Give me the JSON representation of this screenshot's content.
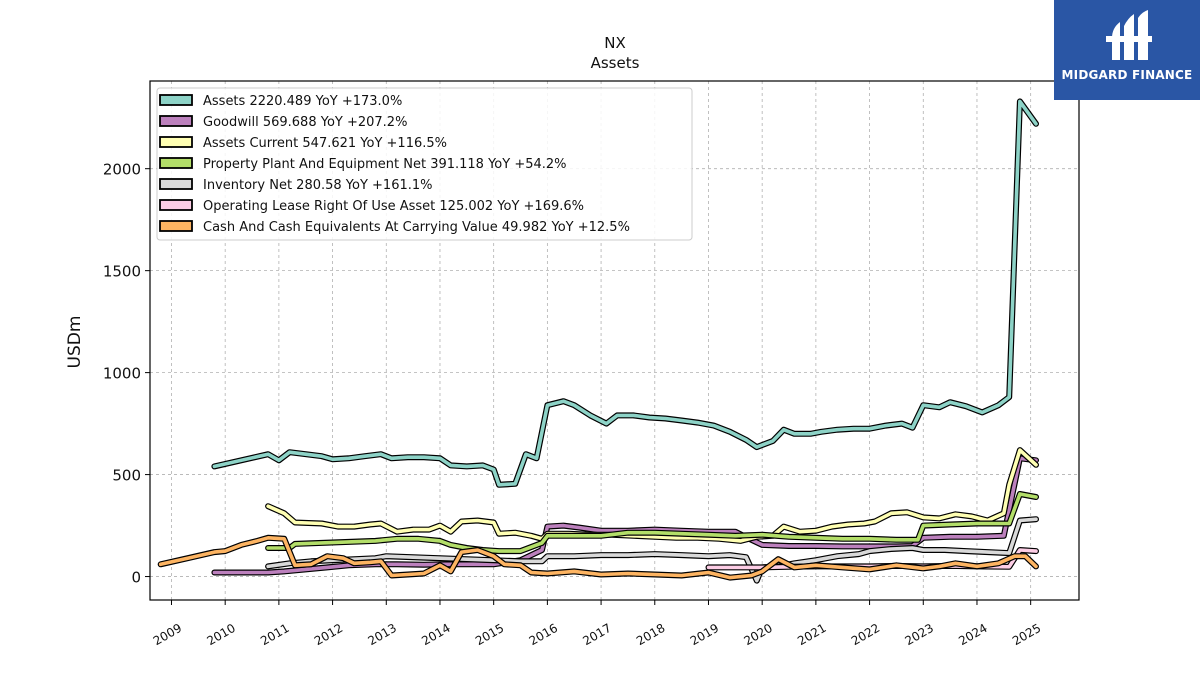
{
  "brand": {
    "name": "MIDGARD FINANCE"
  },
  "chart_data": {
    "type": "line",
    "title": "NX",
    "subtitle": "Assets",
    "ylabel": "USDm",
    "xlabel": "",
    "xlim": [
      2008.6,
      2025.9
    ],
    "ylim": [
      -115,
      2430
    ],
    "yticks": [
      0,
      500,
      1000,
      1500,
      2000
    ],
    "xticks": [
      "2009",
      "2010",
      "2011",
      "2012",
      "2013",
      "2014",
      "2015",
      "2016",
      "2017",
      "2018",
      "2019",
      "2020",
      "2021",
      "2022",
      "2023",
      "2024",
      "2025"
    ],
    "grid": true,
    "legend_position": "top-left",
    "series": [
      {
        "name": "Assets",
        "legend_label": "Assets  2220.489 YoY +173.0%",
        "color": "#8dd3c7",
        "points": [
          [
            2009.8,
            540
          ],
          [
            2010.8,
            600
          ],
          [
            2011.0,
            570
          ],
          [
            2011.2,
            610
          ],
          [
            2011.5,
            600
          ],
          [
            2011.8,
            590
          ],
          [
            2012.0,
            575
          ],
          [
            2012.3,
            580
          ],
          [
            2012.6,
            590
          ],
          [
            2012.9,
            600
          ],
          [
            2013.1,
            580
          ],
          [
            2013.4,
            585
          ],
          [
            2013.7,
            585
          ],
          [
            2014.0,
            580
          ],
          [
            2014.2,
            545
          ],
          [
            2014.5,
            540
          ],
          [
            2014.8,
            545
          ],
          [
            2015.0,
            525
          ],
          [
            2015.1,
            450
          ],
          [
            2015.4,
            455
          ],
          [
            2015.6,
            600
          ],
          [
            2015.8,
            580
          ],
          [
            2016.0,
            840
          ],
          [
            2016.3,
            860
          ],
          [
            2016.5,
            840
          ],
          [
            2016.8,
            790
          ],
          [
            2017.1,
            750
          ],
          [
            2017.3,
            790
          ],
          [
            2017.6,
            790
          ],
          [
            2017.9,
            780
          ],
          [
            2018.2,
            775
          ],
          [
            2018.5,
            765
          ],
          [
            2018.8,
            755
          ],
          [
            2019.1,
            740
          ],
          [
            2019.4,
            710
          ],
          [
            2019.7,
            670
          ],
          [
            2019.9,
            635
          ],
          [
            2020.2,
            665
          ],
          [
            2020.4,
            720
          ],
          [
            2020.6,
            700
          ],
          [
            2020.9,
            700
          ],
          [
            2021.1,
            710
          ],
          [
            2021.4,
            720
          ],
          [
            2021.7,
            725
          ],
          [
            2022.0,
            725
          ],
          [
            2022.3,
            740
          ],
          [
            2022.6,
            750
          ],
          [
            2022.8,
            730
          ],
          [
            2023.0,
            840
          ],
          [
            2023.3,
            830
          ],
          [
            2023.5,
            855
          ],
          [
            2023.8,
            835
          ],
          [
            2024.1,
            805
          ],
          [
            2024.4,
            840
          ],
          [
            2024.6,
            880
          ],
          [
            2024.8,
            2330
          ],
          [
            2025.1,
            2220
          ]
        ]
      },
      {
        "name": "Goodwill",
        "legend_label": "Goodwill  569.688 YoY +207.2%",
        "color": "#bc80bd",
        "points": [
          [
            2009.8,
            20
          ],
          [
            2010.3,
            20
          ],
          [
            2010.8,
            20
          ],
          [
            2011.1,
            25
          ],
          [
            2011.5,
            35
          ],
          [
            2011.9,
            45
          ],
          [
            2012.3,
            55
          ],
          [
            2012.8,
            60
          ],
          [
            2013.2,
            60
          ],
          [
            2013.7,
            58
          ],
          [
            2014.1,
            60
          ],
          [
            2014.6,
            60
          ],
          [
            2015.0,
            60
          ],
          [
            2015.5,
            80
          ],
          [
            2015.9,
            130
          ],
          [
            2016.0,
            245
          ],
          [
            2016.3,
            250
          ],
          [
            2016.6,
            240
          ],
          [
            2017.0,
            225
          ],
          [
            2017.5,
            225
          ],
          [
            2018.0,
            230
          ],
          [
            2018.5,
            225
          ],
          [
            2019.0,
            220
          ],
          [
            2019.5,
            220
          ],
          [
            2019.8,
            180
          ],
          [
            2020.0,
            155
          ],
          [
            2020.5,
            150
          ],
          [
            2021.0,
            150
          ],
          [
            2021.5,
            148
          ],
          [
            2022.0,
            148
          ],
          [
            2022.5,
            148
          ],
          [
            2022.8,
            150
          ],
          [
            2023.0,
            190
          ],
          [
            2023.5,
            195
          ],
          [
            2024.0,
            195
          ],
          [
            2024.5,
            200
          ],
          [
            2024.8,
            580
          ],
          [
            2025.1,
            570
          ]
        ]
      },
      {
        "name": "Assets Current",
        "legend_label": "Assets Current  547.621 YoY +116.5%",
        "color": "#ffffb3",
        "points": [
          [
            2010.8,
            345
          ],
          [
            2011.1,
            310
          ],
          [
            2011.3,
            265
          ],
          [
            2011.8,
            260
          ],
          [
            2012.1,
            245
          ],
          [
            2012.4,
            245
          ],
          [
            2012.7,
            255
          ],
          [
            2012.9,
            260
          ],
          [
            2013.2,
            220
          ],
          [
            2013.5,
            230
          ],
          [
            2013.8,
            230
          ],
          [
            2014.0,
            250
          ],
          [
            2014.2,
            220
          ],
          [
            2014.4,
            270
          ],
          [
            2014.7,
            275
          ],
          [
            2015.0,
            265
          ],
          [
            2015.1,
            210
          ],
          [
            2015.4,
            215
          ],
          [
            2015.7,
            200
          ],
          [
            2015.9,
            185
          ],
          [
            2016.0,
            210
          ],
          [
            2016.4,
            210
          ],
          [
            2016.8,
            205
          ],
          [
            2017.2,
            205
          ],
          [
            2017.6,
            200
          ],
          [
            2018.0,
            195
          ],
          [
            2018.4,
            190
          ],
          [
            2018.8,
            190
          ],
          [
            2019.2,
            185
          ],
          [
            2019.6,
            175
          ],
          [
            2019.9,
            195
          ],
          [
            2020.2,
            200
          ],
          [
            2020.4,
            245
          ],
          [
            2020.7,
            220
          ],
          [
            2021.0,
            225
          ],
          [
            2021.3,
            245
          ],
          [
            2021.6,
            255
          ],
          [
            2021.9,
            260
          ],
          [
            2022.1,
            270
          ],
          [
            2022.4,
            310
          ],
          [
            2022.7,
            315
          ],
          [
            2023.0,
            290
          ],
          [
            2023.3,
            285
          ],
          [
            2023.6,
            305
          ],
          [
            2023.9,
            295
          ],
          [
            2024.2,
            275
          ],
          [
            2024.5,
            310
          ],
          [
            2024.6,
            450
          ],
          [
            2024.8,
            620
          ],
          [
            2025.1,
            548
          ]
        ]
      },
      {
        "name": "Property Plant And Equipment Net",
        "legend_label": "Property Plant And Equipment Net  391.118 YoY +54.2%",
        "color": "#b3de69",
        "points": [
          [
            2010.8,
            140
          ],
          [
            2011.2,
            140
          ],
          [
            2011.3,
            160
          ],
          [
            2011.8,
            165
          ],
          [
            2012.3,
            170
          ],
          [
            2012.8,
            175
          ],
          [
            2013.2,
            185
          ],
          [
            2013.6,
            185
          ],
          [
            2014.0,
            175
          ],
          [
            2014.2,
            155
          ],
          [
            2014.5,
            140
          ],
          [
            2014.8,
            130
          ],
          [
            2015.1,
            125
          ],
          [
            2015.5,
            125
          ],
          [
            2015.9,
            165
          ],
          [
            2016.0,
            200
          ],
          [
            2016.5,
            200
          ],
          [
            2017.0,
            200
          ],
          [
            2017.5,
            215
          ],
          [
            2018.0,
            215
          ],
          [
            2018.5,
            210
          ],
          [
            2019.0,
            205
          ],
          [
            2019.5,
            200
          ],
          [
            2020.0,
            205
          ],
          [
            2020.5,
            195
          ],
          [
            2021.0,
            190
          ],
          [
            2021.5,
            185
          ],
          [
            2022.0,
            185
          ],
          [
            2022.5,
            180
          ],
          [
            2022.9,
            180
          ],
          [
            2023.0,
            250
          ],
          [
            2023.5,
            255
          ],
          [
            2024.0,
            260
          ],
          [
            2024.6,
            260
          ],
          [
            2024.8,
            405
          ],
          [
            2025.1,
            390
          ]
        ]
      },
      {
        "name": "Inventory Net",
        "legend_label": "Inventory Net  280.58 YoY +161.1%",
        "color": "#d9d9d9",
        "points": [
          [
            2010.8,
            50
          ],
          [
            2011.2,
            65
          ],
          [
            2011.6,
            75
          ],
          [
            2012.0,
            80
          ],
          [
            2012.4,
            85
          ],
          [
            2012.8,
            90
          ],
          [
            2013.0,
            100
          ],
          [
            2013.5,
            95
          ],
          [
            2014.0,
            90
          ],
          [
            2014.5,
            85
          ],
          [
            2015.0,
            80
          ],
          [
            2015.5,
            75
          ],
          [
            2015.9,
            75
          ],
          [
            2016.0,
            100
          ],
          [
            2016.5,
            100
          ],
          [
            2017.0,
            105
          ],
          [
            2017.5,
            105
          ],
          [
            2018.0,
            110
          ],
          [
            2018.5,
            105
          ],
          [
            2019.0,
            100
          ],
          [
            2019.4,
            105
          ],
          [
            2019.7,
            95
          ],
          [
            2019.9,
            -20
          ],
          [
            2020.0,
            45
          ],
          [
            2020.3,
            50
          ],
          [
            2020.6,
            65
          ],
          [
            2021.0,
            80
          ],
          [
            2021.4,
            100
          ],
          [
            2021.8,
            110
          ],
          [
            2022.0,
            125
          ],
          [
            2022.4,
            135
          ],
          [
            2022.8,
            140
          ],
          [
            2023.0,
            130
          ],
          [
            2023.4,
            130
          ],
          [
            2023.8,
            125
          ],
          [
            2024.2,
            120
          ],
          [
            2024.6,
            115
          ],
          [
            2024.8,
            275
          ],
          [
            2025.1,
            281
          ]
        ]
      },
      {
        "name": "Operating Lease Right Of Use Asset",
        "legend_label": "Operating Lease Right Of Use Asset  125.002 YoY +169.6%",
        "color": "#fccde5",
        "points": [
          [
            2019.0,
            45
          ],
          [
            2019.5,
            45
          ],
          [
            2020.0,
            45
          ],
          [
            2020.5,
            48
          ],
          [
            2021.0,
            50
          ],
          [
            2021.5,
            50
          ],
          [
            2022.0,
            50
          ],
          [
            2022.5,
            52
          ],
          [
            2023.0,
            50
          ],
          [
            2023.5,
            52
          ],
          [
            2024.0,
            50
          ],
          [
            2024.6,
            48
          ],
          [
            2024.8,
            130
          ],
          [
            2025.1,
            125
          ]
        ]
      },
      {
        "name": "Cash And Cash Equivalents At Carrying Value",
        "legend_label": "Cash And Cash Equivalents At Carrying Value  49.982 YoY +12.5%",
        "color": "#fdb462",
        "points": [
          [
            2008.8,
            60
          ],
          [
            2009.3,
            90
          ],
          [
            2009.8,
            120
          ],
          [
            2010.0,
            125
          ],
          [
            2010.3,
            155
          ],
          [
            2010.6,
            175
          ],
          [
            2010.8,
            190
          ],
          [
            2011.1,
            185
          ],
          [
            2011.3,
            55
          ],
          [
            2011.6,
            60
          ],
          [
            2011.9,
            100
          ],
          [
            2012.2,
            90
          ],
          [
            2012.4,
            65
          ],
          [
            2012.7,
            70
          ],
          [
            2012.9,
            75
          ],
          [
            2013.1,
            5
          ],
          [
            2013.4,
            10
          ],
          [
            2013.7,
            15
          ],
          [
            2014.0,
            55
          ],
          [
            2014.2,
            25
          ],
          [
            2014.4,
            120
          ],
          [
            2014.7,
            130
          ],
          [
            2015.0,
            100
          ],
          [
            2015.2,
            60
          ],
          [
            2015.5,
            55
          ],
          [
            2015.7,
            20
          ],
          [
            2016.0,
            15
          ],
          [
            2016.5,
            25
          ],
          [
            2017.0,
            10
          ],
          [
            2017.5,
            15
          ],
          [
            2018.0,
            10
          ],
          [
            2018.5,
            5
          ],
          [
            2019.0,
            20
          ],
          [
            2019.4,
            -5
          ],
          [
            2019.8,
            5
          ],
          [
            2020.0,
            25
          ],
          [
            2020.3,
            85
          ],
          [
            2020.6,
            45
          ],
          [
            2021.0,
            55
          ],
          [
            2021.5,
            45
          ],
          [
            2022.0,
            35
          ],
          [
            2022.5,
            55
          ],
          [
            2023.0,
            40
          ],
          [
            2023.3,
            50
          ],
          [
            2023.6,
            65
          ],
          [
            2024.0,
            50
          ],
          [
            2024.4,
            65
          ],
          [
            2024.7,
            100
          ],
          [
            2024.9,
            100
          ],
          [
            2025.1,
            50
          ]
        ]
      }
    ]
  }
}
